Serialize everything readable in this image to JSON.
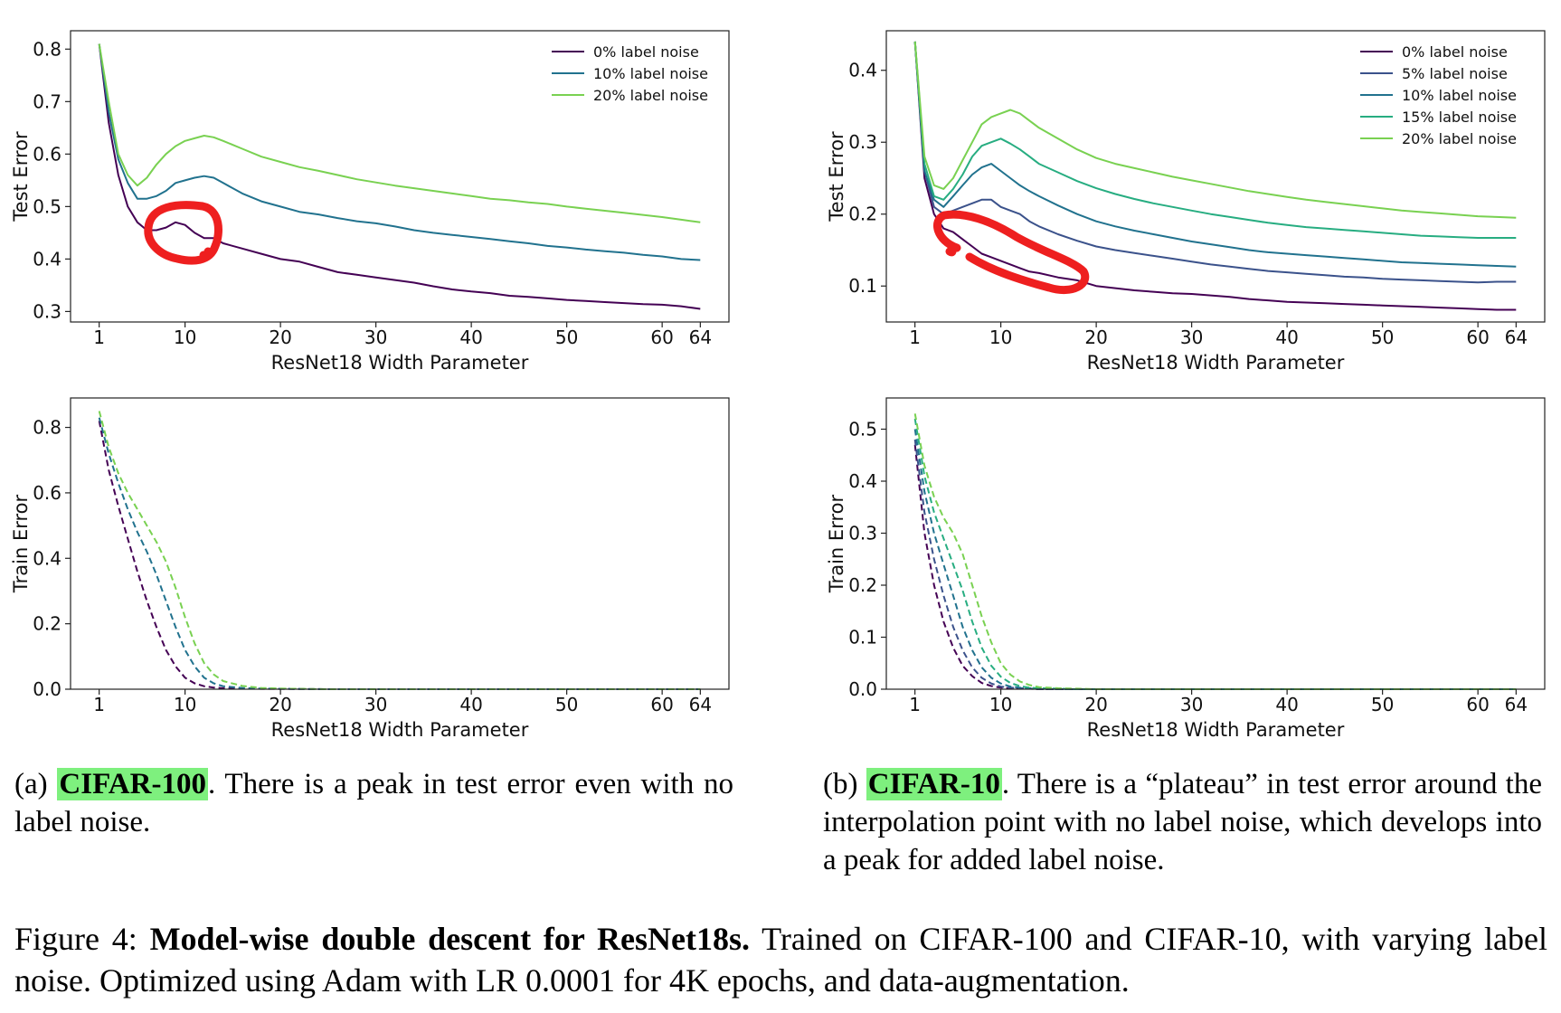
{
  "colors": {
    "p0": "#440154",
    "p5": "#3b528b",
    "p10": "#21728e",
    "p15": "#27ad81",
    "p20": "#79d151",
    "annotation": "#ee1f1f"
  },
  "captions": {
    "a": {
      "prefix": "(a) ",
      "highlight": "CIFAR-100",
      "rest": ". There is a peak in test error even with no label noise."
    },
    "b": {
      "prefix": "(b) ",
      "highlight": "CIFAR-10",
      "rest": ".  There is a “plateau” in test error around the interpolation point with no label noise, which develops into a peak for added label noise."
    },
    "figure": {
      "prefix": "Figure 4: ",
      "bold": "Model-wise double descent for ResNet18s.",
      "rest": " Trained on CIFAR-100 and CIFAR-10, with varying label noise. Optimized using Adam with LR 0.0001 for 4K epochs, and data-augmentation."
    }
  },
  "chart_data": [
    {
      "id": "cifar100-test",
      "type": "line",
      "title": "",
      "xlabel": "ResNet18 Width Parameter",
      "ylabel": "Test Error",
      "xlim": [
        -2,
        67
      ],
      "ylim": [
        0.28,
        0.835
      ],
      "xticks": [
        1,
        10,
        20,
        30,
        40,
        50,
        60,
        64
      ],
      "yticks": [
        0.3,
        0.4,
        0.5,
        0.6,
        0.7,
        0.8
      ],
      "ytick_labels": [
        "0.3",
        "0.4",
        "0.5",
        "0.6",
        "0.7",
        "0.8"
      ],
      "legend_position": "top-right",
      "x": [
        1,
        2,
        3,
        4,
        5,
        6,
        7,
        8,
        9,
        10,
        11,
        12,
        13,
        14,
        16,
        18,
        20,
        22,
        24,
        26,
        28,
        30,
        32,
        34,
        36,
        38,
        40,
        42,
        44,
        46,
        48,
        50,
        52,
        54,
        56,
        58,
        60,
        62,
        64
      ],
      "series": [
        {
          "name": "0% label noise",
          "color_key": "p0",
          "dashed": false,
          "values": [
            0.81,
            0.66,
            0.56,
            0.5,
            0.47,
            0.455,
            0.455,
            0.46,
            0.47,
            0.465,
            0.45,
            0.44,
            0.44,
            0.43,
            0.42,
            0.41,
            0.4,
            0.395,
            0.385,
            0.375,
            0.37,
            0.365,
            0.36,
            0.355,
            0.348,
            0.342,
            0.338,
            0.335,
            0.33,
            0.328,
            0.325,
            0.322,
            0.32,
            0.318,
            0.316,
            0.314,
            0.313,
            0.31,
            0.305
          ]
        },
        {
          "name": "10% label noise",
          "color_key": "p10",
          "dashed": false,
          "values": [
            0.81,
            0.68,
            0.59,
            0.545,
            0.515,
            0.515,
            0.52,
            0.53,
            0.545,
            0.55,
            0.555,
            0.558,
            0.555,
            0.545,
            0.525,
            0.51,
            0.5,
            0.49,
            0.485,
            0.478,
            0.472,
            0.468,
            0.462,
            0.455,
            0.45,
            0.446,
            0.442,
            0.438,
            0.434,
            0.43,
            0.425,
            0.422,
            0.418,
            0.415,
            0.412,
            0.408,
            0.405,
            0.4,
            0.398
          ]
        },
        {
          "name": "20% label noise",
          "color_key": "p20",
          "dashed": false,
          "values": [
            0.81,
            0.7,
            0.6,
            0.56,
            0.54,
            0.555,
            0.58,
            0.6,
            0.615,
            0.625,
            0.63,
            0.635,
            0.632,
            0.625,
            0.61,
            0.595,
            0.585,
            0.575,
            0.568,
            0.56,
            0.552,
            0.546,
            0.54,
            0.535,
            0.53,
            0.525,
            0.52,
            0.515,
            0.512,
            0.508,
            0.505,
            0.5,
            0.496,
            0.492,
            0.488,
            0.484,
            0.48,
            0.475,
            0.47
          ]
        }
      ]
    },
    {
      "id": "cifar10-test",
      "type": "line",
      "title": "",
      "xlabel": "ResNet18 Width Parameter",
      "ylabel": "Test Error",
      "xlim": [
        -2,
        67
      ],
      "ylim": [
        0.05,
        0.455
      ],
      "xticks": [
        1,
        10,
        20,
        30,
        40,
        50,
        60,
        64
      ],
      "yticks": [
        0.1,
        0.2,
        0.3,
        0.4
      ],
      "ytick_labels": [
        "0.1",
        "0.2",
        "0.3",
        "0.4"
      ],
      "legend_position": "top-right",
      "x": [
        1,
        2,
        3,
        4,
        5,
        6,
        7,
        8,
        9,
        10,
        11,
        12,
        13,
        14,
        16,
        18,
        20,
        22,
        24,
        26,
        28,
        30,
        32,
        34,
        36,
        38,
        40,
        42,
        44,
        46,
        48,
        50,
        52,
        54,
        56,
        58,
        60,
        62,
        64
      ],
      "series": [
        {
          "name": "0% label noise",
          "color_key": "p0",
          "dashed": false,
          "values": [
            0.44,
            0.25,
            0.2,
            0.18,
            0.175,
            0.165,
            0.155,
            0.145,
            0.14,
            0.135,
            0.13,
            0.125,
            0.12,
            0.118,
            0.112,
            0.108,
            0.1,
            0.097,
            0.094,
            0.092,
            0.09,
            0.089,
            0.087,
            0.085,
            0.082,
            0.08,
            0.078,
            0.077,
            0.076,
            0.075,
            0.074,
            0.073,
            0.072,
            0.071,
            0.07,
            0.069,
            0.068,
            0.067,
            0.067
          ]
        },
        {
          "name": "5% label noise",
          "color_key": "p5",
          "dashed": false,
          "values": [
            0.44,
            0.26,
            0.21,
            0.2,
            0.205,
            0.21,
            0.215,
            0.22,
            0.22,
            0.21,
            0.205,
            0.2,
            0.19,
            0.183,
            0.172,
            0.163,
            0.155,
            0.15,
            0.146,
            0.142,
            0.138,
            0.134,
            0.13,
            0.127,
            0.124,
            0.121,
            0.119,
            0.117,
            0.115,
            0.113,
            0.112,
            0.11,
            0.109,
            0.108,
            0.107,
            0.106,
            0.105,
            0.106,
            0.106
          ]
        },
        {
          "name": "10% label noise",
          "color_key": "p10",
          "dashed": false,
          "values": [
            0.44,
            0.26,
            0.22,
            0.21,
            0.225,
            0.24,
            0.255,
            0.265,
            0.27,
            0.26,
            0.25,
            0.24,
            0.232,
            0.225,
            0.212,
            0.2,
            0.19,
            0.183,
            0.177,
            0.172,
            0.167,
            0.162,
            0.158,
            0.154,
            0.15,
            0.147,
            0.145,
            0.143,
            0.141,
            0.139,
            0.137,
            0.135,
            0.133,
            0.132,
            0.131,
            0.13,
            0.129,
            0.128,
            0.127
          ]
        },
        {
          "name": "15% label noise",
          "color_key": "p15",
          "dashed": false,
          "values": [
            0.44,
            0.27,
            0.225,
            0.22,
            0.235,
            0.255,
            0.28,
            0.295,
            0.3,
            0.305,
            0.298,
            0.29,
            0.28,
            0.27,
            0.258,
            0.246,
            0.236,
            0.228,
            0.221,
            0.215,
            0.21,
            0.205,
            0.2,
            0.196,
            0.192,
            0.188,
            0.185,
            0.182,
            0.18,
            0.178,
            0.176,
            0.174,
            0.172,
            0.17,
            0.169,
            0.168,
            0.167,
            0.167,
            0.167
          ]
        },
        {
          "name": "20% label noise",
          "color_key": "p20",
          "dashed": false,
          "values": [
            0.44,
            0.28,
            0.24,
            0.235,
            0.25,
            0.275,
            0.3,
            0.325,
            0.335,
            0.34,
            0.345,
            0.34,
            0.33,
            0.32,
            0.305,
            0.29,
            0.278,
            0.27,
            0.264,
            0.258,
            0.252,
            0.247,
            0.242,
            0.237,
            0.232,
            0.228,
            0.224,
            0.22,
            0.217,
            0.214,
            0.211,
            0.208,
            0.205,
            0.203,
            0.201,
            0.199,
            0.197,
            0.196,
            0.195
          ]
        }
      ]
    },
    {
      "id": "cifar100-train",
      "type": "line",
      "title": "",
      "xlabel": "ResNet18 Width Parameter",
      "ylabel": "Train Error",
      "xlim": [
        -2,
        67
      ],
      "ylim": [
        0,
        0.89
      ],
      "xticks": [
        1,
        10,
        20,
        30,
        40,
        50,
        60,
        64
      ],
      "yticks": [
        0,
        0.2,
        0.4,
        0.6,
        0.8
      ],
      "ytick_labels": [
        "0.0",
        "0.2",
        "0.4",
        "0.6",
        "0.8"
      ],
      "legend_position": "none",
      "x": [
        1,
        2,
        3,
        4,
        5,
        6,
        7,
        8,
        9,
        10,
        11,
        12,
        13,
        14,
        16,
        18,
        20,
        25,
        30,
        40,
        50,
        60,
        64
      ],
      "series": [
        {
          "name": "0% label noise",
          "color_key": "p0",
          "dashed": true,
          "values": [
            0.82,
            0.67,
            0.56,
            0.46,
            0.36,
            0.27,
            0.19,
            0.12,
            0.07,
            0.035,
            0.018,
            0.009,
            0.005,
            0.003,
            0.002,
            0.001,
            0.001,
            0,
            0,
            0,
            0,
            0,
            0
          ]
        },
        {
          "name": "10% label noise",
          "color_key": "p10",
          "dashed": true,
          "values": [
            0.83,
            0.72,
            0.63,
            0.55,
            0.48,
            0.42,
            0.35,
            0.27,
            0.19,
            0.12,
            0.07,
            0.035,
            0.018,
            0.009,
            0.004,
            0.002,
            0.001,
            0,
            0,
            0,
            0,
            0,
            0
          ]
        },
        {
          "name": "20% label noise",
          "color_key": "p20",
          "dashed": true,
          "values": [
            0.85,
            0.74,
            0.66,
            0.6,
            0.55,
            0.5,
            0.45,
            0.39,
            0.31,
            0.22,
            0.14,
            0.08,
            0.045,
            0.025,
            0.01,
            0.004,
            0.002,
            0,
            0,
            0,
            0,
            0,
            0
          ]
        }
      ]
    },
    {
      "id": "cifar10-train",
      "type": "line",
      "title": "",
      "xlabel": "ResNet18 Width Parameter",
      "ylabel": "Train Error",
      "xlim": [
        -2,
        67
      ],
      "ylim": [
        0,
        0.56
      ],
      "xticks": [
        1,
        10,
        20,
        30,
        40,
        50,
        60,
        64
      ],
      "yticks": [
        0,
        0.1,
        0.2,
        0.3,
        0.4,
        0.5
      ],
      "ytick_labels": [
        "0.0",
        "0.1",
        "0.2",
        "0.3",
        "0.4",
        "0.5"
      ],
      "legend_position": "none",
      "x": [
        1,
        2,
        3,
        4,
        5,
        6,
        7,
        8,
        9,
        10,
        11,
        12,
        13,
        14,
        16,
        18,
        20,
        25,
        30,
        40,
        50,
        60,
        64
      ],
      "series": [
        {
          "name": "0% label noise",
          "color_key": "p0",
          "dashed": true,
          "values": [
            0.47,
            0.3,
            0.2,
            0.13,
            0.08,
            0.045,
            0.025,
            0.012,
            0.006,
            0.003,
            0.002,
            0.001,
            0.001,
            0,
            0,
            0,
            0,
            0,
            0,
            0,
            0,
            0,
            0
          ]
        },
        {
          "name": "5% label noise",
          "color_key": "p5",
          "dashed": true,
          "values": [
            0.48,
            0.34,
            0.25,
            0.18,
            0.12,
            0.075,
            0.042,
            0.022,
            0.011,
            0.005,
            0.003,
            0.002,
            0.001,
            0,
            0,
            0,
            0,
            0,
            0,
            0,
            0,
            0,
            0
          ]
        },
        {
          "name": "10% label noise",
          "color_key": "p10",
          "dashed": true,
          "values": [
            0.5,
            0.38,
            0.3,
            0.24,
            0.18,
            0.12,
            0.075,
            0.042,
            0.022,
            0.011,
            0.005,
            0.003,
            0.002,
            0.001,
            0,
            0,
            0,
            0,
            0,
            0,
            0,
            0,
            0
          ]
        },
        {
          "name": "15% label noise",
          "color_key": "p15",
          "dashed": true,
          "values": [
            0.52,
            0.41,
            0.34,
            0.29,
            0.24,
            0.19,
            0.13,
            0.08,
            0.045,
            0.024,
            0.012,
            0.006,
            0.003,
            0.002,
            0.001,
            0,
            0,
            0,
            0,
            0,
            0,
            0,
            0
          ]
        },
        {
          "name": "20% label noise",
          "color_key": "p20",
          "dashed": true,
          "values": [
            0.53,
            0.43,
            0.37,
            0.33,
            0.3,
            0.26,
            0.2,
            0.14,
            0.09,
            0.05,
            0.028,
            0.015,
            0.008,
            0.004,
            0.002,
            0.001,
            0,
            0,
            0,
            0,
            0,
            0,
            0
          ]
        }
      ]
    }
  ],
  "annotations": [
    {
      "chart": "cifar100-test",
      "type": "hand-drawn-circle",
      "color_key": "annotation",
      "around": "0% label noise peak near width 10"
    },
    {
      "chart": "cifar10-test",
      "type": "hand-drawn-circle",
      "color_key": "annotation",
      "around": "0% label noise plateau from width 3 to 18"
    }
  ]
}
